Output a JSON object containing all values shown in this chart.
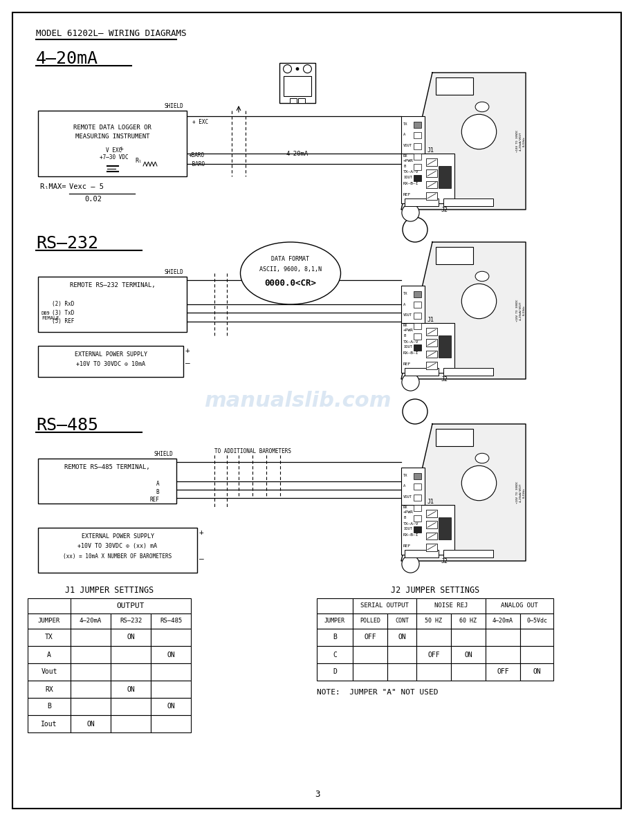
{
  "page_title": "MODEL 61202L– WIRING DIAGRAMS",
  "page_number": "3",
  "bg": "#ffffff",
  "line_color": "#000000",
  "watermark_text": "manualslib.com",
  "watermark_color": "#b8d0e8",
  "j1_title": "J1 JUMPER SETTINGS",
  "j1_col_sub": [
    "JUMPER",
    "4–20mA",
    "RS–232",
    "RS–485"
  ],
  "j1_rows": [
    [
      "TX",
      "",
      "ON",
      ""
    ],
    [
      "A",
      "",
      "",
      "ON"
    ],
    [
      "Vout",
      "",
      "",
      ""
    ],
    [
      "RX",
      "",
      "ON",
      ""
    ],
    [
      "B",
      "",
      "",
      "ON"
    ],
    [
      "Iout",
      "ON",
      "",
      ""
    ]
  ],
  "j2_title": "J2 JUMPER SETTINGS",
  "j2_col_sub": [
    "JUMPER",
    "POLLED",
    "CONT",
    "50 HZ",
    "60 HZ",
    "4–20mA",
    "0–5Vdc"
  ],
  "j2_col_span": [
    "",
    "SERIAL OUTPUT",
    "NOISE REJ",
    "ANALOG OUT"
  ],
  "j2_rows": [
    [
      "B",
      "OFF",
      "ON",
      "",
      "",
      "",
      ""
    ],
    [
      "C",
      "",
      "",
      "OFF",
      "ON",
      "",
      ""
    ],
    [
      "D",
      "",
      "",
      "",
      "",
      "OFF",
      "ON"
    ]
  ],
  "note": "NOTE:  JUMPER \"A\" NOT USED"
}
